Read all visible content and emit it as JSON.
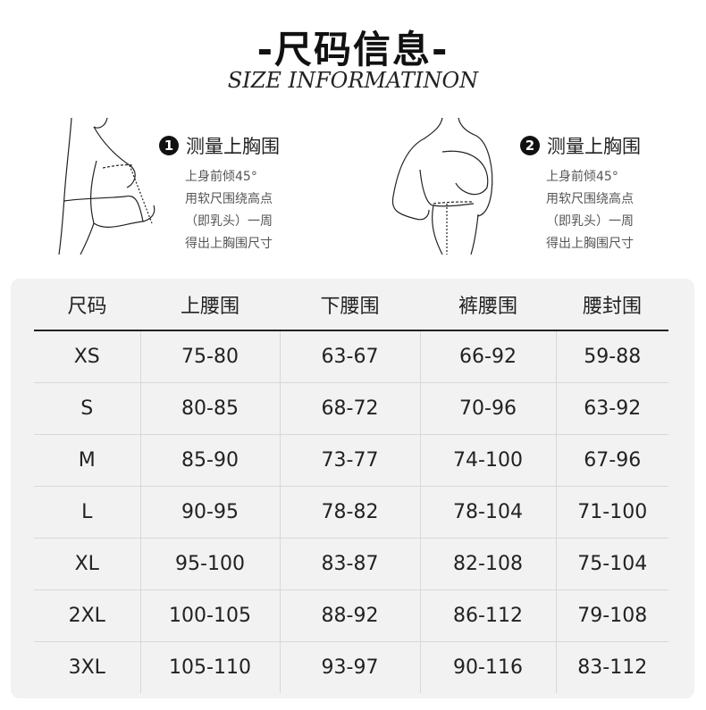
{
  "header": {
    "title": "-尺码信息-",
    "subtitle": "SIZE INFORMATINON"
  },
  "steps": [
    {
      "number": "1",
      "title": "测量上胸围",
      "lines": [
        "上身前倾45°",
        "用软尺围绕高点",
        "（即乳头）一周",
        "得出上胸围尺寸"
      ]
    },
    {
      "number": "2",
      "title": "测量上胸围",
      "lines": [
        "上身前倾45°",
        "用软尺围绕高点",
        "（即乳头）一周",
        "得出上胸围尺寸"
      ]
    }
  ],
  "table": {
    "headers": [
      "尺码",
      "上腰围",
      "下腰围",
      "裤腰围",
      "腰封围"
    ],
    "rows": [
      [
        "XS",
        "75-80",
        "63-67",
        "66-92",
        "59-88"
      ],
      [
        "S",
        "80-85",
        "68-72",
        "70-96",
        "63-92"
      ],
      [
        "M",
        "85-90",
        "73-77",
        "74-100",
        "67-96"
      ],
      [
        "L",
        "90-95",
        "78-82",
        "78-104",
        "71-100"
      ],
      [
        "XL",
        "95-100",
        "83-87",
        "82-108",
        "75-104"
      ],
      [
        "2XL",
        "100-105",
        "88-92",
        "86-112",
        "79-108"
      ],
      [
        "3XL",
        "105-110",
        "93-97",
        "90-116",
        "83-112"
      ]
    ]
  }
}
